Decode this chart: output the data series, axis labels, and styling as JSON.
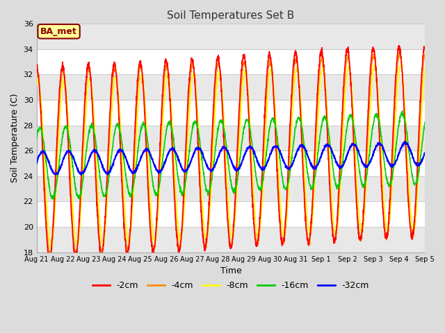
{
  "title": "Soil Temperatures Set B",
  "xlabel": "Time",
  "ylabel": "Soil Temperature (C)",
  "ylim": [
    18,
    36
  ],
  "yticks": [
    18,
    20,
    22,
    24,
    26,
    28,
    30,
    32,
    34,
    36
  ],
  "x_tick_labels": [
    "Aug 21",
    "Aug 22",
    "Aug 23",
    "Aug 24",
    "Aug 25",
    "Aug 26",
    "Aug 27",
    "Aug 28",
    "Aug 29",
    "Aug 30",
    "Aug 31",
    "Sep 1",
    "Sep 2",
    "Sep 3",
    "Sep 4",
    "Sep 5"
  ],
  "annotation_text": "BA_met",
  "annotation_bg": "#ffff99",
  "annotation_border": "#8B0000",
  "legend_entries": [
    "-2cm",
    "-4cm",
    "-8cm",
    "-16cm",
    "-32cm"
  ],
  "line_colors": [
    "#ff0000",
    "#ff8c00",
    "#ffff00",
    "#00cc00",
    "#0000ff"
  ],
  "background_color": "#dcdcdc",
  "plot_bg": "#ffffff",
  "alt_band_color": "#e8e8e8",
  "n_points": 2160,
  "days": 15,
  "base_mean": 25.0,
  "amp_2cm": 7.5,
  "amp_4cm": 7.2,
  "amp_8cm": 6.5,
  "amp_16cm": 2.8,
  "amp_32cm": 0.9,
  "phase_2cm": 1.57,
  "phase_4cm": 1.45,
  "phase_8cm": 1.2,
  "phase_16cm": 0.8,
  "phase_32cm": 0.1,
  "trend_2cm": 0.12,
  "trend_4cm": 0.1,
  "trend_8cm": 0.09,
  "trend_16cm": 0.08,
  "trend_32cm": 0.05
}
